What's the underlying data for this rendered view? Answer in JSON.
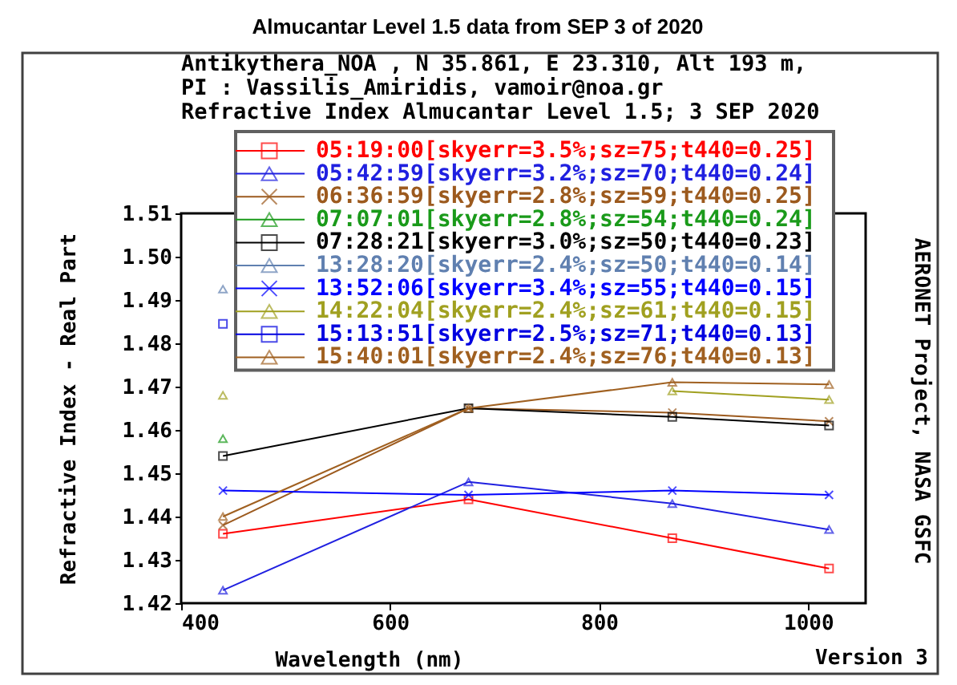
{
  "chart_data": {
    "type": "line",
    "title": "Almucantar Level 1.5 data from SEP 3 of 2020",
    "xlabel": "Wavelength (nm)",
    "ylabel": "Refractive Index - Real Part",
    "annotations": [
      "Antikythera_NOA , N 35.861, E  23.310, Alt 193 m,",
      "PI : Vassilis_Amiridis, vamoir@noa.gr",
      "Refractive Index Almucantar Level 1.5; 3 SEP 2020",
      "Version 3",
      "AERONET Project, NASA GSFC"
    ],
    "x": [
      440,
      675,
      870,
      1020
    ],
    "xlim": [
      400,
      1055
    ],
    "xticks": [
      400,
      600,
      800,
      1000
    ],
    "ylim": [
      1.42,
      1.51
    ],
    "yticks": [
      1.42,
      1.43,
      1.44,
      1.45,
      1.46,
      1.47,
      1.48,
      1.49,
      {
        "value": 1.5,
        "label": "1.50"
      },
      1.51
    ],
    "grid": false,
    "legend": "top",
    "line_style": "solid",
    "series": [
      {
        "name": "05:19:00[skyerr=3.5%;sz=75;t440=0.25]",
        "color": "#ff0000",
        "marker": "square",
        "values": [
          1.436,
          1.444,
          1.435,
          1.428
        ]
      },
      {
        "name": "05:42:59[skyerr=3.2%;sz=70;t440=0.24]",
        "color": "#2020e0",
        "marker": "triangle",
        "values": [
          1.423,
          1.448,
          1.443,
          1.437
        ]
      },
      {
        "name": "06:36:59[skyerr=2.8%;sz=59;t440=0.25]",
        "color": "#9c5a1e",
        "marker": "cross",
        "values": [
          1.438,
          1.465,
          1.464,
          1.462
        ]
      },
      {
        "name": "07:07:01[skyerr=2.8%;sz=54;t440=0.24]",
        "color": "#1a9a1a",
        "marker": "triangle",
        "values": [
          1.458,
          null,
          null,
          null
        ]
      },
      {
        "name": "07:28:21[skyerr=3.0%;sz=50;t440=0.23]",
        "color": "#000000",
        "marker": "square",
        "values": [
          1.454,
          1.465,
          1.463,
          1.461
        ]
      },
      {
        "name": "13:28:20[skyerr=2.4%;sz=50;t440=0.14]",
        "color": "#6080b0",
        "marker": "triangle",
        "values": [
          1.4925,
          null,
          null,
          null
        ]
      },
      {
        "name": "13:52:06[skyerr=3.4%;sz=55;t440=0.15]",
        "color": "#0000ff",
        "marker": "cross",
        "values": [
          1.446,
          1.445,
          1.446,
          1.445
        ]
      },
      {
        "name": "14:22:04[skyerr=2.4%;sz=61;t440=0.15]",
        "color": "#a0a020",
        "marker": "triangle",
        "values": [
          1.468,
          null,
          1.469,
          1.467
        ]
      },
      {
        "name": "15:13:51[skyerr=2.5%;sz=71;t440=0.13]",
        "color": "#0000e0",
        "marker": "square",
        "values": [
          1.4845,
          null,
          null,
          null
        ]
      },
      {
        "name": "15:40:01[skyerr=2.4%;sz=76;t440=0.13]",
        "color": "#a06020",
        "marker": "triangle",
        "values": [
          1.44,
          1.465,
          1.471,
          1.4705
        ]
      }
    ]
  }
}
